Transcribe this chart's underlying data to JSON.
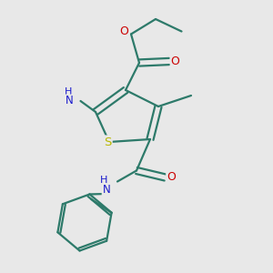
{
  "bg_color": "#e8e8e8",
  "bond_color": "#2d7a6a",
  "bond_width": 1.6,
  "atom_colors": {
    "S": "#b8b800",
    "N": "#1a1acc",
    "O": "#cc0000",
    "C": "#2d7a6a"
  },
  "figsize": [
    3.0,
    3.0
  ],
  "dpi": 100
}
